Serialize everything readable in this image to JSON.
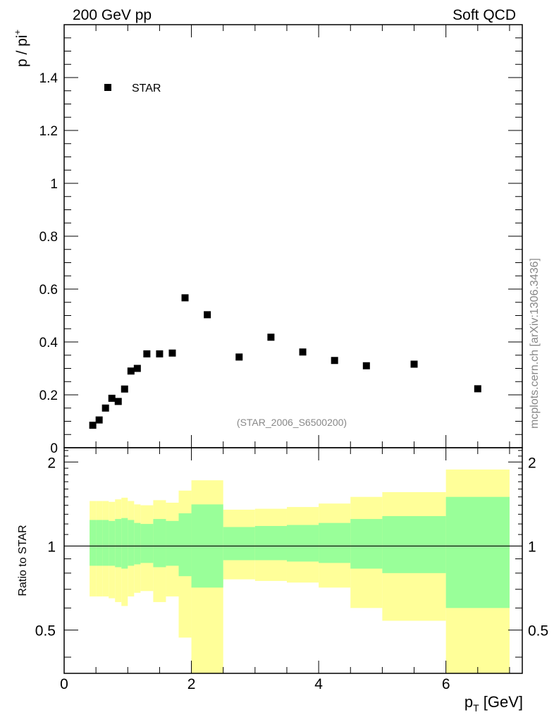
{
  "header": {
    "left_label": "200 GeV pp",
    "right_label": "Soft QCD"
  },
  "watermark": "mcplots.cern.ch [arXiv:1306.3436]",
  "chart_data": [
    {
      "type": "scatter",
      "ylabel_main": "p / pi",
      "ylabel_sup": "+",
      "ylim": [
        0,
        1.6
      ],
      "xlim": [
        0,
        7.2
      ],
      "yticks": [
        0,
        0.2,
        0.4,
        0.6,
        0.8,
        1,
        1.2,
        1.4
      ],
      "ytick_labels": [
        "0",
        "0.2",
        "0.4",
        "0.6",
        "0.8",
        "1",
        "1.2",
        "1.4"
      ],
      "legend": "STAR",
      "analysis_tag": "(STAR_2006_S6500200)",
      "series": [
        {
          "name": "STAR",
          "x": [
            0.45,
            0.55,
            0.65,
            0.75,
            0.85,
            0.95,
            1.05,
            1.15,
            1.3,
            1.5,
            1.7,
            1.9,
            2.25,
            2.75,
            3.25,
            3.75,
            4.25,
            4.75,
            5.5,
            6.5
          ],
          "y": [
            0.085,
            0.105,
            0.15,
            0.187,
            0.175,
            0.222,
            0.29,
            0.3,
            0.355,
            0.355,
            0.358,
            0.567,
            0.503,
            0.343,
            0.418,
            0.362,
            0.33,
            0.31,
            0.316,
            0.223
          ]
        }
      ]
    },
    {
      "type": "area",
      "ylabel": "Ratio to STAR",
      "ylim": [
        0.35,
        2.25
      ],
      "xlim": [
        0,
        7.2
      ],
      "xlabel_main": "p",
      "xlabel_sub": "T",
      "xlabel_unit": " [GeV]",
      "yticks": [
        0.5,
        1,
        2
      ],
      "ytick_labels": [
        "0.5",
        "1",
        "2"
      ],
      "xticks": [
        0,
        2,
        4,
        6
      ],
      "xtick_labels": [
        "0",
        "2",
        "4",
        "6"
      ],
      "reference_line": 1,
      "bins": [
        {
          "lo": 0.4,
          "hi": 0.5,
          "y_lo": 0.66,
          "y_hi": 1.45,
          "g_lo": 0.85,
          "g_hi": 1.24
        },
        {
          "lo": 0.5,
          "hi": 0.6,
          "y_lo": 0.66,
          "y_hi": 1.45,
          "g_lo": 0.85,
          "g_hi": 1.24
        },
        {
          "lo": 0.6,
          "hi": 0.7,
          "y_lo": 0.66,
          "y_hi": 1.45,
          "g_lo": 0.85,
          "g_hi": 1.24
        },
        {
          "lo": 0.7,
          "hi": 0.8,
          "y_lo": 0.65,
          "y_hi": 1.44,
          "g_lo": 0.85,
          "g_hi": 1.23
        },
        {
          "lo": 0.8,
          "hi": 0.9,
          "y_lo": 0.63,
          "y_hi": 1.47,
          "g_lo": 0.84,
          "g_hi": 1.25
        },
        {
          "lo": 0.9,
          "hi": 1.0,
          "y_lo": 0.61,
          "y_hi": 1.49,
          "g_lo": 0.83,
          "g_hi": 1.26
        },
        {
          "lo": 1.0,
          "hi": 1.1,
          "y_lo": 0.66,
          "y_hi": 1.45,
          "g_lo": 0.85,
          "g_hi": 1.24
        },
        {
          "lo": 1.1,
          "hi": 1.2,
          "y_lo": 0.68,
          "y_hi": 1.41,
          "g_lo": 0.86,
          "g_hi": 1.21
        },
        {
          "lo": 1.2,
          "hi": 1.4,
          "y_lo": 0.69,
          "y_hi": 1.4,
          "g_lo": 0.87,
          "g_hi": 1.2
        },
        {
          "lo": 1.4,
          "hi": 1.6,
          "y_lo": 0.63,
          "y_hi": 1.46,
          "g_lo": 0.84,
          "g_hi": 1.25
        },
        {
          "lo": 1.6,
          "hi": 1.8,
          "y_lo": 0.66,
          "y_hi": 1.43,
          "g_lo": 0.85,
          "g_hi": 1.23
        },
        {
          "lo": 1.8,
          "hi": 2.0,
          "y_lo": 0.47,
          "y_hi": 1.58,
          "g_lo": 0.78,
          "g_hi": 1.31
        },
        {
          "lo": 2.0,
          "hi": 2.5,
          "y_lo": 0.35,
          "y_hi": 1.72,
          "g_lo": 0.71,
          "g_hi": 1.41
        },
        {
          "lo": 2.5,
          "hi": 3.0,
          "y_lo": 0.76,
          "y_hi": 1.35,
          "g_lo": 0.89,
          "g_hi": 1.17
        },
        {
          "lo": 3.0,
          "hi": 3.5,
          "y_lo": 0.75,
          "y_hi": 1.36,
          "g_lo": 0.89,
          "g_hi": 1.18
        },
        {
          "lo": 3.5,
          "hi": 4.0,
          "y_lo": 0.74,
          "y_hi": 1.38,
          "g_lo": 0.88,
          "g_hi": 1.19
        },
        {
          "lo": 4.0,
          "hi": 4.5,
          "y_lo": 0.71,
          "y_hi": 1.42,
          "g_lo": 0.87,
          "g_hi": 1.21
        },
        {
          "lo": 4.5,
          "hi": 5.0,
          "y_lo": 0.6,
          "y_hi": 1.5,
          "g_lo": 0.83,
          "g_hi": 1.25
        },
        {
          "lo": 5.0,
          "hi": 6.0,
          "y_lo": 0.54,
          "y_hi": 1.56,
          "g_lo": 0.8,
          "g_hi": 1.28
        },
        {
          "lo": 6.0,
          "hi": 7.0,
          "y_lo": 0.35,
          "y_hi": 1.88,
          "g_lo": 0.6,
          "g_hi": 1.5
        }
      ]
    }
  ],
  "colors": {
    "yellow_band": "#ffff99",
    "green_band": "#99ff99",
    "marker": "#000000",
    "tag_text": "#888888"
  }
}
